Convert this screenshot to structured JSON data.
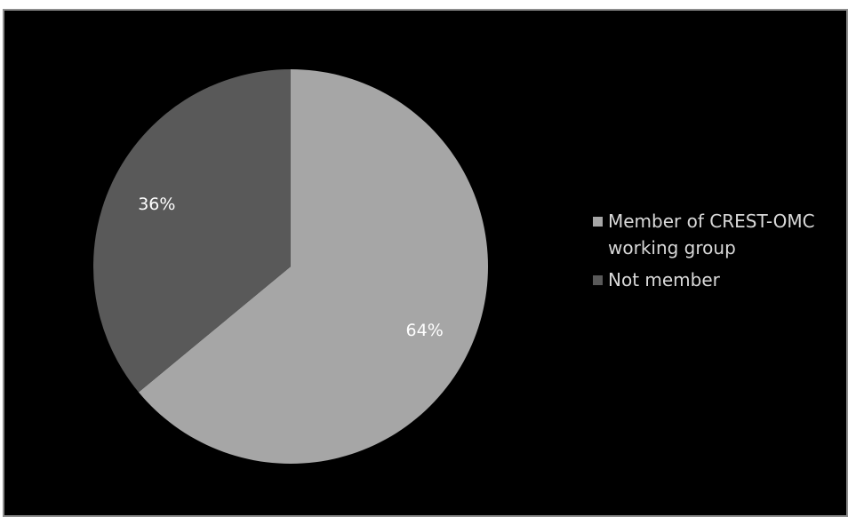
{
  "chart_data": {
    "type": "pie",
    "title": "",
    "slices": [
      {
        "name": "Member of CREST-OMC working group",
        "value": 64,
        "label": "64%",
        "color": "#a6a6a6"
      },
      {
        "name": "Not member",
        "value": 36,
        "label": "36%",
        "color": "#595959"
      }
    ],
    "start_angle_deg": 0,
    "direction": "clockwise",
    "legend_position": "right"
  },
  "colors": {
    "background": "#000000",
    "label_text": "#ffffff",
    "legend_text": "#d9d9d9"
  }
}
